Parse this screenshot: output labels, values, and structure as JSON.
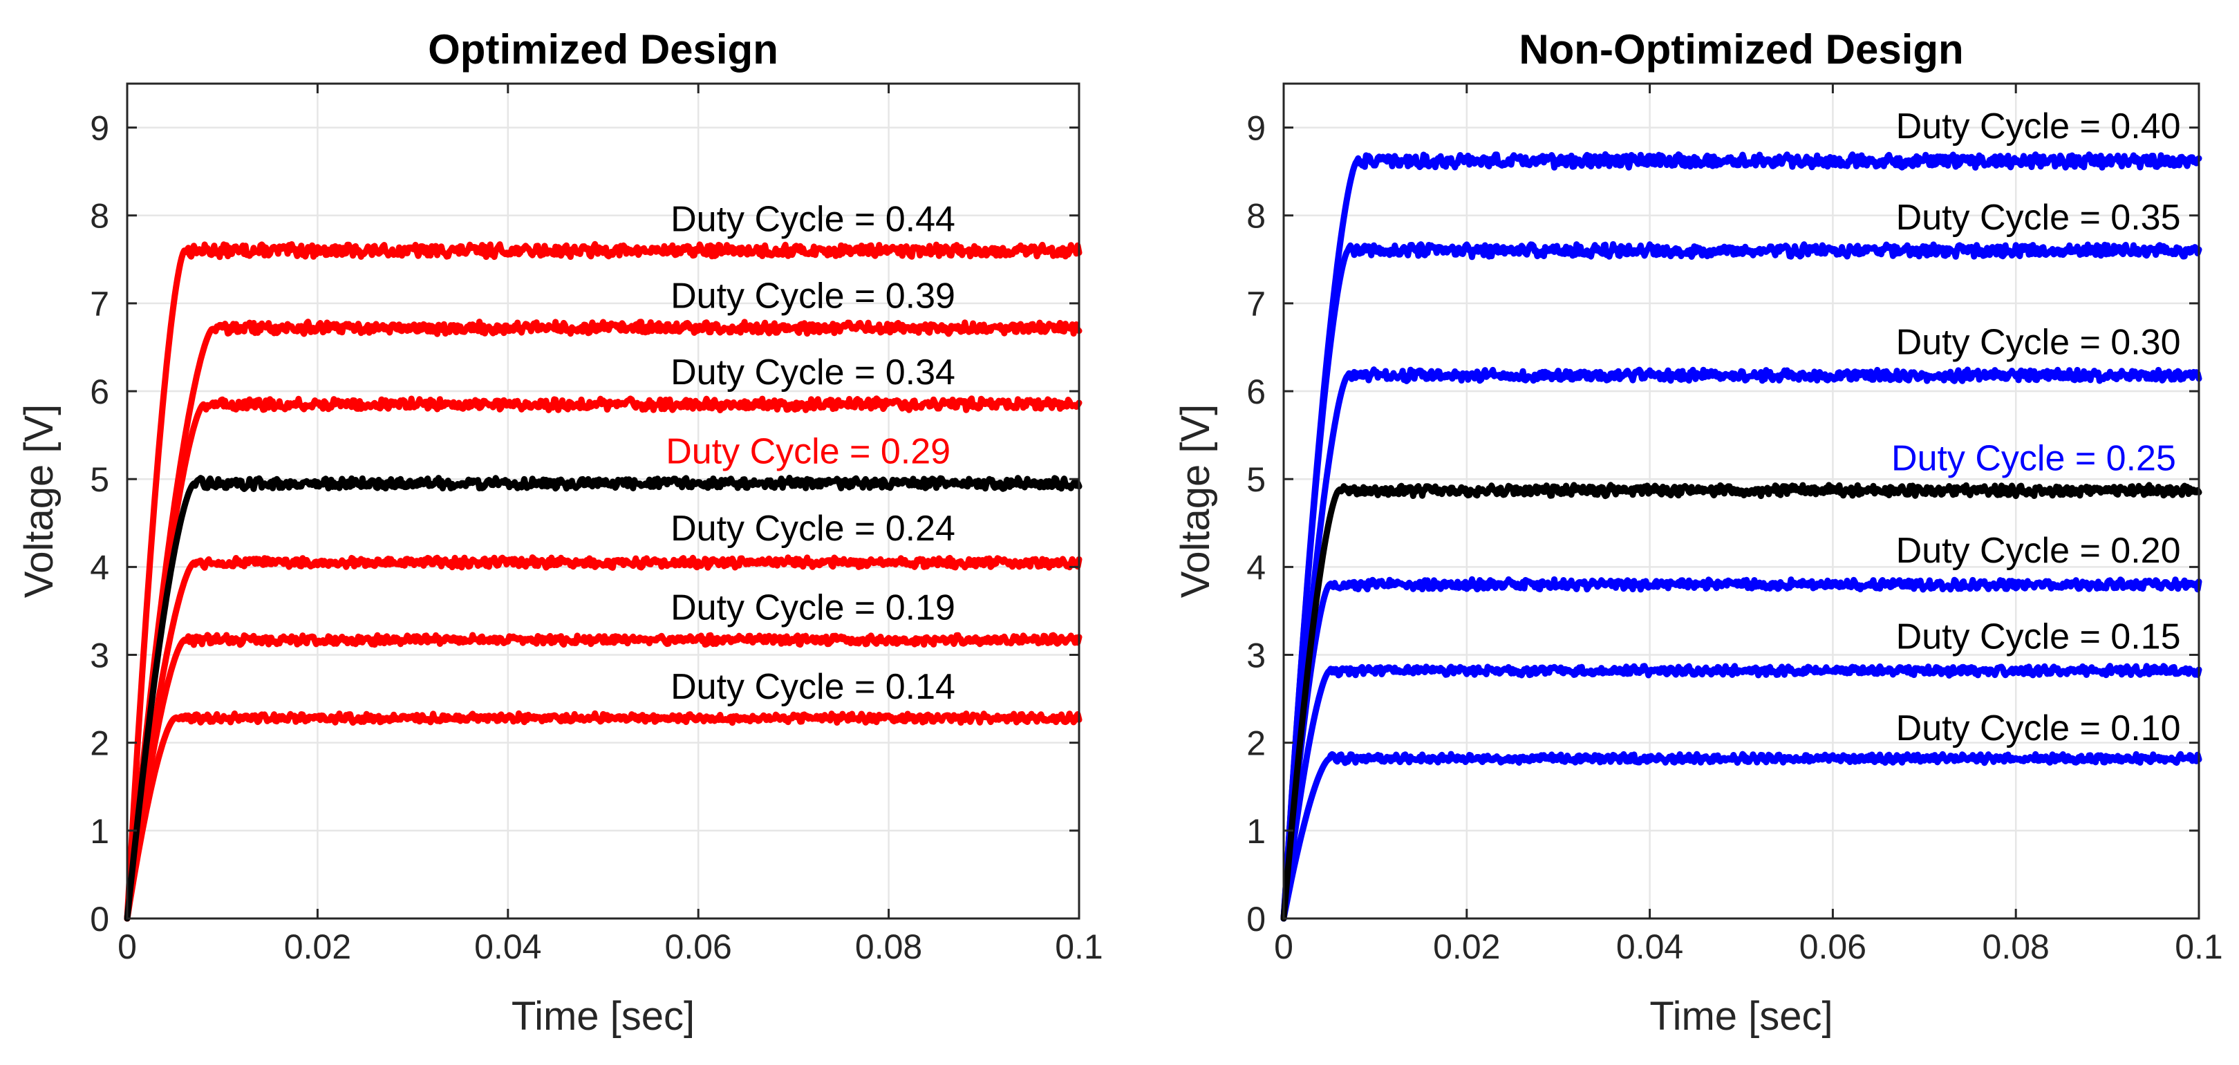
{
  "chart_data": [
    {
      "type": "line",
      "title": "Optimized Design",
      "xlabel": "Time [sec]",
      "ylabel": "Voltage [V]",
      "xlim": [
        0,
        0.1
      ],
      "ylim": [
        0,
        9.5
      ],
      "xticks": [
        0,
        0.02,
        0.04,
        0.06,
        0.08,
        0.1
      ],
      "xtick_labels": [
        "0",
        "0.02",
        "0.04",
        "0.06",
        "0.08",
        "0.1"
      ],
      "yticks": [
        0,
        1,
        2,
        3,
        4,
        5,
        6,
        7,
        8,
        9
      ],
      "ytick_labels": [
        "0",
        "1",
        "2",
        "3",
        "4",
        "5",
        "6",
        "7",
        "8",
        "9"
      ],
      "grid": true,
      "series": [
        {
          "name": "Duty Cycle = 0.44",
          "label": "Duty Cycle = 0.44",
          "steady_value": 7.6,
          "rise_time": 0.006,
          "color": "#ff0000",
          "label_color": "#000000",
          "label_x": 0.087,
          "label_y": 7.82
        },
        {
          "name": "Duty Cycle = 0.39",
          "label": "Duty Cycle = 0.39",
          "steady_value": 6.72,
          "rise_time": 0.009,
          "color": "#ff0000",
          "label_color": "#000000",
          "label_x": 0.087,
          "label_y": 6.95
        },
        {
          "name": "Duty Cycle = 0.34",
          "label": "Duty Cycle = 0.34",
          "steady_value": 5.85,
          "rise_time": 0.008,
          "color": "#ff0000",
          "label_color": "#000000",
          "label_x": 0.087,
          "label_y": 6.08
        },
        {
          "name": "Duty Cycle = 0.29",
          "label": "Duty Cycle = 0.29",
          "steady_value": 4.95,
          "rise_time": 0.007,
          "color": "#000000",
          "label_color": "#ff0000",
          "label_x": 0.0865,
          "label_y": 5.18
        },
        {
          "name": "Duty Cycle = 0.24",
          "label": "Duty Cycle = 0.24",
          "steady_value": 4.05,
          "rise_time": 0.007,
          "color": "#ff0000",
          "label_color": "#000000",
          "label_x": 0.087,
          "label_y": 4.3
        },
        {
          "name": "Duty Cycle = 0.19",
          "label": "Duty Cycle = 0.19",
          "steady_value": 3.17,
          "rise_time": 0.006,
          "color": "#ff0000",
          "label_color": "#000000",
          "label_x": 0.087,
          "label_y": 3.4
        },
        {
          "name": "Duty Cycle = 0.14",
          "label": "Duty Cycle = 0.14",
          "steady_value": 2.28,
          "rise_time": 0.005,
          "color": "#ff0000",
          "label_color": "#000000",
          "label_x": 0.087,
          "label_y": 2.5
        }
      ]
    },
    {
      "type": "line",
      "title": "Non-Optimized Design",
      "xlabel": "Time [sec]",
      "ylabel": "Voltage [V]",
      "xlim": [
        0,
        0.1
      ],
      "ylim": [
        0,
        9.5
      ],
      "xticks": [
        0,
        0.02,
        0.04,
        0.06,
        0.08,
        0.1
      ],
      "xtick_labels": [
        "0",
        "0.02",
        "0.04",
        "0.06",
        "0.08",
        "0.1"
      ],
      "yticks": [
        0,
        1,
        2,
        3,
        4,
        5,
        6,
        7,
        8,
        9
      ],
      "ytick_labels": [
        "0",
        "1",
        "2",
        "3",
        "4",
        "5",
        "6",
        "7",
        "8",
        "9"
      ],
      "grid": true,
      "series": [
        {
          "name": "Duty Cycle = 0.40",
          "label": "Duty Cycle = 0.40",
          "steady_value": 8.62,
          "rise_time": 0.008,
          "color": "#0000ff",
          "label_color": "#000000",
          "label_x": 0.098,
          "label_y": 8.88
        },
        {
          "name": "Duty Cycle = 0.35",
          "label": "Duty Cycle = 0.35",
          "steady_value": 7.6,
          "rise_time": 0.007,
          "color": "#0000ff",
          "label_color": "#000000",
          "label_x": 0.098,
          "label_y": 7.84
        },
        {
          "name": "Duty Cycle = 0.30",
          "label": "Duty Cycle = 0.30",
          "steady_value": 6.18,
          "rise_time": 0.007,
          "color": "#0000ff",
          "label_color": "#000000",
          "label_x": 0.098,
          "label_y": 6.42
        },
        {
          "name": "Duty Cycle = 0.25",
          "label": "Duty Cycle = 0.25",
          "steady_value": 4.87,
          "rise_time": 0.006,
          "color": "#000000",
          "label_color": "#0000ff",
          "label_x": 0.0975,
          "label_y": 5.1
        },
        {
          "name": "Duty Cycle = 0.20",
          "label": "Duty Cycle = 0.20",
          "steady_value": 3.8,
          "rise_time": 0.005,
          "color": "#0000ff",
          "label_color": "#000000",
          "label_x": 0.098,
          "label_y": 4.05
        },
        {
          "name": "Duty Cycle = 0.15",
          "label": "Duty Cycle = 0.15",
          "steady_value": 2.82,
          "rise_time": 0.005,
          "color": "#0000ff",
          "label_color": "#000000",
          "label_x": 0.098,
          "label_y": 3.07
        },
        {
          "name": "Duty Cycle = 0.10",
          "label": "Duty Cycle = 0.10",
          "steady_value": 1.82,
          "rise_time": 0.005,
          "color": "#0000ff",
          "label_color": "#000000",
          "label_x": 0.098,
          "label_y": 2.03
        }
      ]
    }
  ]
}
